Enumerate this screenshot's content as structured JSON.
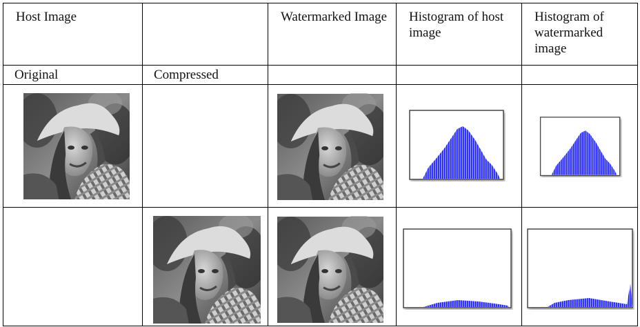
{
  "table": {
    "header": [
      "Host Image",
      "Watermarked Image",
      "Histogram of host image",
      "Histogram of watermarked image"
    ],
    "subheader": [
      "Original",
      "Compressed"
    ]
  }
}
